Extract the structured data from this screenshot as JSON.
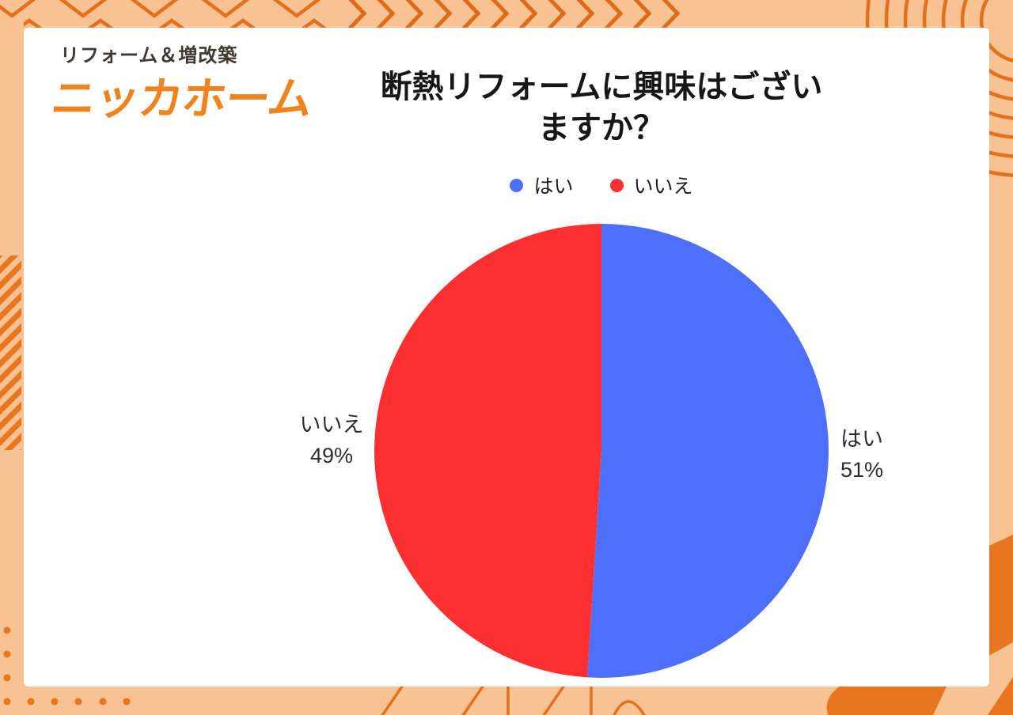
{
  "brand": {
    "tagline": "リフォーム＆増改築",
    "name": "ニッカホーム",
    "name_color": "#F0831E",
    "tagline_color": "#403A35"
  },
  "chart_data": {
    "type": "pie",
    "title": "断熱リフォームに興味はございますか？",
    "title_lines": [
      "断熱リフォームに興味はござい",
      "ますか？"
    ],
    "categories": [
      "はい",
      "いいえ"
    ],
    "values": [
      51,
      49
    ],
    "unit": "%",
    "colors": [
      "#4D6FFA",
      "#FC3030"
    ],
    "legend_position": "top",
    "start_angle": "top",
    "direction": "clockwise",
    "slice_labels": [
      {
        "name": "はい",
        "value": "51%"
      },
      {
        "name": "いいえ",
        "value": "49%"
      }
    ]
  },
  "theme": {
    "background": "#F8C292",
    "accent_line": "#E2701E",
    "accent_solid": "#E8751F",
    "card": "#FFFFFF",
    "text": "#1E1E1E"
  }
}
